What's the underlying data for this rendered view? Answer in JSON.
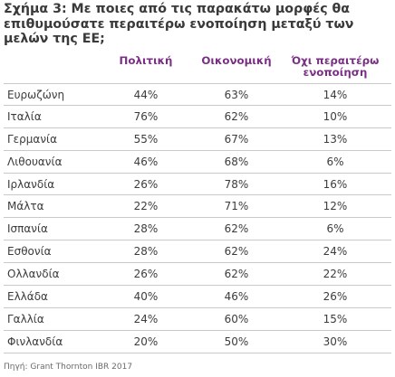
{
  "title": {
    "line1": "Σχήμα 3: Με ποιες από τις παρακάτω μορφές θα",
    "line2": "επιθυμούσατε περαιτέρω ενοποίηση μεταξύ των",
    "line3": "μελών της ΕΕ;"
  },
  "headers": {
    "politiki": "Πολιτική",
    "oikonomiki": "Οικονομική",
    "oxi_line1": "Όχι περαιτέρω",
    "oxi_line2": "ενοποίηση"
  },
  "rows": [
    {
      "country": "Ευρωζώνη",
      "politiki": "44%",
      "oikonomiki": "63%",
      "oxi": "14%"
    },
    {
      "country": "Ιταλία",
      "politiki": "76%",
      "oikonomiki": "62%",
      "oxi": "10%"
    },
    {
      "country": "Γερμανία",
      "politiki": "55%",
      "oikonomiki": "67%",
      "oxi": "13%"
    },
    {
      "country": "Λιθουανία",
      "politiki": "46%",
      "oikonomiki": "68%",
      "oxi": "6%"
    },
    {
      "country": "Ιρλανδία",
      "politiki": "26%",
      "oikonomiki": "78%",
      "oxi": "16%"
    },
    {
      "country": "Μάλτα",
      "politiki": "22%",
      "oikonomiki": "71%",
      "oxi": "12%"
    },
    {
      "country": "Ισπανία",
      "politiki": "28%",
      "oikonomiki": "62%",
      "oxi": "6%"
    },
    {
      "country": "Εσθονία",
      "politiki": "28%",
      "oikonomiki": "62%",
      "oxi": "24%"
    },
    {
      "country": "Ολλανδία",
      "politiki": "26%",
      "oikonomiki": "62%",
      "oxi": "22%"
    },
    {
      "country": "Ελλάδα",
      "politiki": "40%",
      "oikonomiki": "46%",
      "oxi": "26%"
    },
    {
      "country": "Γαλλία",
      "politiki": "24%",
      "oikonomiki": "60%",
      "oxi": "15%"
    },
    {
      "country": "Φινλανδία",
      "politiki": "20%",
      "oikonomiki": "50%",
      "oxi": "30%"
    }
  ],
  "source": "Πηγή: Grant Thornton IBR 2017",
  "colors": {
    "header_accent": "#7a2f84",
    "text": "#3c3c3c",
    "rule": "#c9c9c9"
  }
}
